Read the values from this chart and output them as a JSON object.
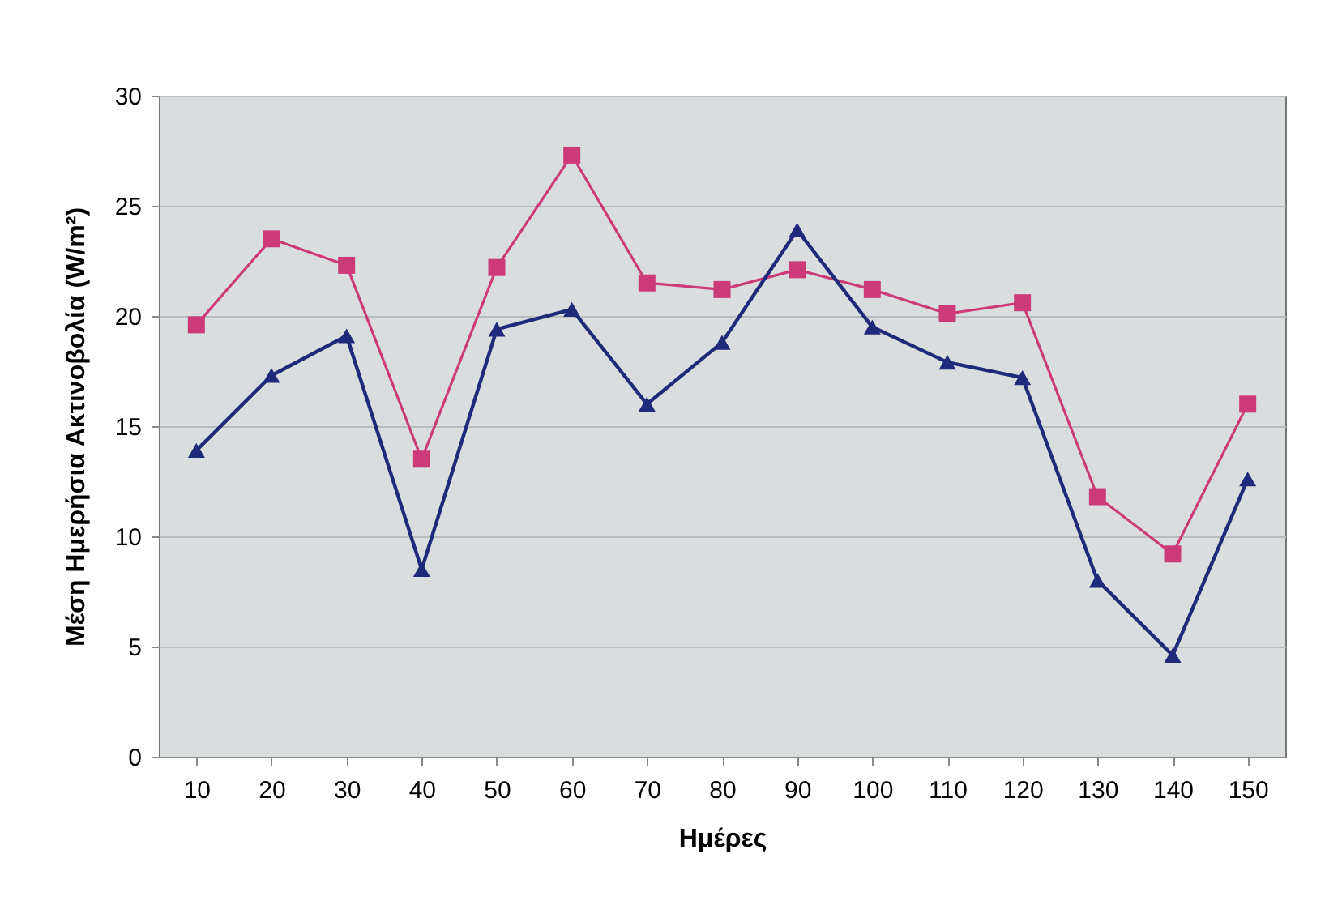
{
  "chart_data": {
    "type": "line",
    "xlabel": "Ημέρες",
    "ylabel": "Μέση Ημερήσια Ακτινοβολία (W/m²)",
    "categories": [
      "10",
      "20",
      "30",
      "40",
      "50",
      "60",
      "70",
      "80",
      "90",
      "100",
      "110",
      "120",
      "130",
      "140",
      "150"
    ],
    "series": [
      {
        "color": "#cc3a78",
        "marker": "square",
        "values": [
          19.6,
          23.5,
          22.3,
          13.5,
          22.2,
          27.3,
          21.5,
          21.2,
          22.1,
          21.2,
          20.1,
          20.6,
          11.8,
          9.2,
          16.0
        ]
      },
      {
        "color": "#1f2a7a",
        "marker": "triangle",
        "values": [
          13.9,
          17.3,
          19.1,
          8.5,
          19.4,
          20.3,
          16.0,
          18.8,
          23.9,
          19.5,
          17.9,
          17.2,
          8.0,
          4.6,
          12.6
        ]
      }
    ],
    "ylim": [
      0,
      30
    ],
    "yticks": [
      0,
      5,
      10,
      15,
      20,
      25,
      30
    ],
    "grid": "y"
  }
}
